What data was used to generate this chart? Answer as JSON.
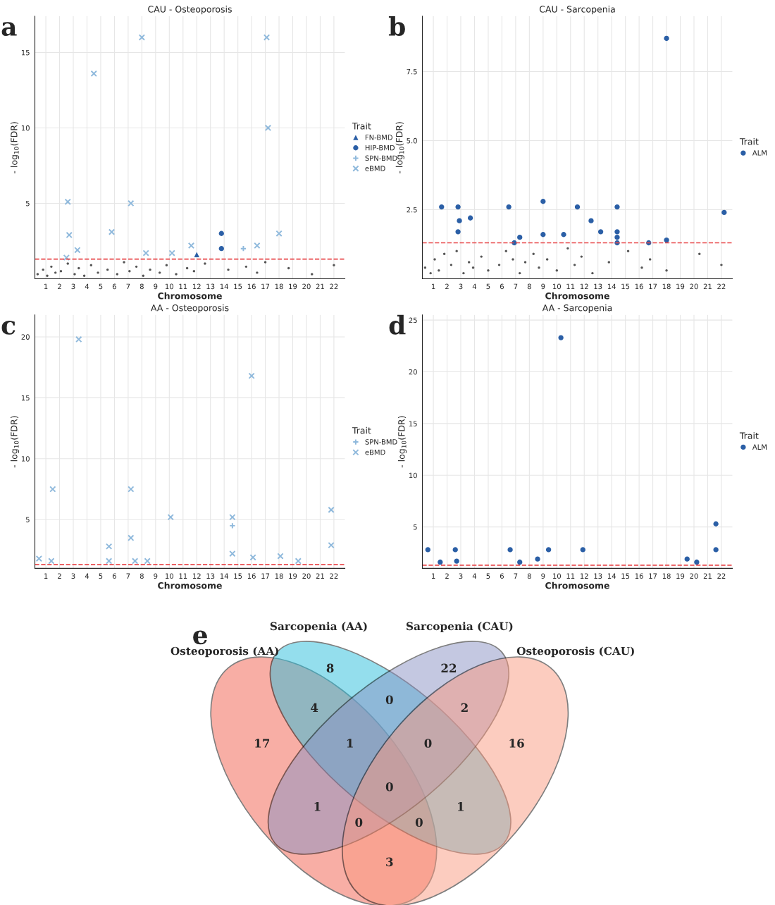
{
  "chart_data": [
    {
      "type": "scatter",
      "title": "CAU - Osteoporosis",
      "xlabel": "Chromosome",
      "ylabel": "- log$_{10}$(FDR)",
      "legend_title": "Trait",
      "annotations": [
        "a"
      ],
      "xlim": [
        0.2,
        22.8
      ],
      "xticks": [
        1,
        2,
        3,
        4,
        5,
        6,
        7,
        8,
        9,
        10,
        11,
        12,
        13,
        14,
        15,
        16,
        17,
        18,
        19,
        20,
        21,
        22
      ],
      "ylim": [
        0,
        17.4
      ],
      "yticks": [
        5,
        10,
        15
      ],
      "grid": true,
      "legend": "right",
      "ref_lines": [
        {
          "axis": "y",
          "value": 1.3,
          "color": "#e8474a",
          "line_style": "dashed"
        }
      ],
      "series": [
        {
          "color": "#555555",
          "marker": "circle",
          "x": [
            0.4,
            0.8,
            1.1,
            1.4,
            1.7,
            2.1,
            2.6,
            3.1,
            3.4,
            3.8,
            4.3,
            4.8,
            5.5,
            6.2,
            6.7,
            7.1,
            7.6,
            8.1,
            8.6,
            9.3,
            9.8,
            10.5,
            11.3,
            11.8,
            12.6,
            14.3,
            15.6,
            16.4,
            17.0,
            18.7,
            20.4,
            22.0
          ],
          "values": [
            0.3,
            0.6,
            0.2,
            0.8,
            0.4,
            0.5,
            1.0,
            0.3,
            0.7,
            0.2,
            0.9,
            0.4,
            0.6,
            0.3,
            1.1,
            0.5,
            0.8,
            0.2,
            0.6,
            0.4,
            0.9,
            0.3,
            0.7,
            0.5,
            1.0,
            0.6,
            0.8,
            0.4,
            1.1,
            0.7,
            0.3,
            0.9
          ]
        },
        {
          "name": "FN-BMD",
          "color": "#2b5fa6",
          "marker": "triangle",
          "x": [
            12.0
          ],
          "values": [
            1.6
          ]
        },
        {
          "name": "HIP-BMD",
          "color": "#2b5fa6",
          "marker": "circle",
          "x": [
            13.8,
            13.8
          ],
          "values": [
            3.0,
            2.0
          ]
        },
        {
          "name": "SPN-BMD",
          "color": "#8fb9dc",
          "marker": "cross",
          "x": [
            15.4
          ],
          "values": [
            2.0
          ]
        },
        {
          "name": "eBMD",
          "color": "#8fb9dc",
          "marker": "x",
          "x": [
            8.0,
            17.1,
            4.5,
            17.2,
            2.6,
            7.2,
            2.7,
            3.3,
            5.8,
            2.5,
            8.3,
            10.2,
            11.6,
            16.4,
            18.0
          ],
          "values": [
            16.0,
            16.0,
            13.6,
            10.0,
            5.1,
            5.0,
            2.9,
            1.9,
            3.1,
            1.4,
            1.7,
            1.7,
            2.2,
            2.2,
            3.0
          ]
        }
      ]
    },
    {
      "type": "scatter",
      "title": "CAU - Sarcopenia",
      "xlabel": "Chromosome",
      "ylabel": "- log$_{10}$(FDR)",
      "legend_title": "Trait",
      "annotations": [
        "b"
      ],
      "xlim": [
        0.2,
        22.8
      ],
      "xticks": [
        1,
        2,
        3,
        4,
        5,
        6,
        7,
        8,
        9,
        10,
        11,
        12,
        13,
        14,
        15,
        16,
        17,
        18,
        19,
        20,
        21,
        22
      ],
      "ylim": [
        0,
        9.5
      ],
      "yticks": [
        {
          "value": 2.5,
          "label": "2.5"
        },
        {
          "value": 5,
          "label": "5.0"
        },
        {
          "value": 7.5,
          "label": "7.5"
        }
      ],
      "grid": true,
      "legend": "right",
      "ref_lines": [
        {
          "axis": "y",
          "value": 1.3,
          "color": "#e8474a",
          "line_style": "dashed"
        }
      ],
      "series": [
        {
          "color": "#555555",
          "marker": "circle",
          "x": [
            0.4,
            0.8,
            1.1,
            1.4,
            1.8,
            2.3,
            2.7,
            3.2,
            3.6,
            3.9,
            4.5,
            5.0,
            5.8,
            6.3,
            6.8,
            7.3,
            7.7,
            8.3,
            8.7,
            9.3,
            10.0,
            10.8,
            11.3,
            11.8,
            12.6,
            13.8,
            15.2,
            16.2,
            16.8,
            18.0,
            20.4,
            22.0
          ],
          "values": [
            0.4,
            0.2,
            0.7,
            0.3,
            0.9,
            0.5,
            1.0,
            0.2,
            0.6,
            0.4,
            0.8,
            0.3,
            0.5,
            1.0,
            0.7,
            0.2,
            0.6,
            0.9,
            0.4,
            0.7,
            0.3,
            1.1,
            0.5,
            0.8,
            0.2,
            0.6,
            1.0,
            0.4,
            0.7,
            0.3,
            0.9,
            0.5
          ]
        },
        {
          "name": "ALM",
          "color": "#2b5fa6",
          "marker": "circle",
          "x": [
            18.0,
            1.6,
            2.8,
            2.9,
            2.8,
            3.7,
            6.5,
            6.9,
            7.3,
            9.0,
            9.0,
            10.5,
            11.5,
            12.5,
            13.2,
            14.4,
            14.4,
            14.4,
            14.4,
            16.7,
            18.0,
            22.2
          ],
          "values": [
            8.7,
            2.6,
            2.6,
            2.1,
            1.7,
            2.2,
            2.6,
            1.3,
            1.5,
            2.8,
            1.6,
            1.6,
            2.6,
            2.1,
            1.7,
            2.6,
            1.7,
            1.5,
            1.3,
            1.3,
            1.4,
            2.4
          ]
        }
      ]
    },
    {
      "type": "scatter",
      "title": "AA - Osteoporosis",
      "xlabel": "Chromosome",
      "ylabel": "- log$_{10}$(FDR)",
      "legend_title": "Trait",
      "annotations": [
        "c"
      ],
      "xlim": [
        0.2,
        22.8
      ],
      "xticks": [
        1,
        2,
        3,
        4,
        5,
        6,
        7,
        8,
        9,
        10,
        11,
        12,
        13,
        14,
        15,
        16,
        17,
        18,
        19,
        20,
        21,
        22
      ],
      "ylim": [
        1,
        21.8
      ],
      "yticks": [
        5,
        10,
        15,
        20
      ],
      "grid": true,
      "legend": "right",
      "ref_lines": [
        {
          "axis": "y",
          "value": 1.3,
          "color": "#e8474a",
          "line_style": "dashed"
        }
      ],
      "series": [
        {
          "name": "SPN-BMD",
          "color": "#8fb9dc",
          "marker": "cross",
          "x": [
            14.6
          ],
          "values": [
            4.5
          ]
        },
        {
          "name": "eBMD",
          "color": "#8fb9dc",
          "marker": "x",
          "x": [
            3.4,
            16.0,
            1.5,
            7.2,
            10.1,
            14.6,
            21.8,
            21.8,
            7.2,
            5.6,
            0.5,
            1.4,
            5.6,
            7.5,
            8.4,
            14.6,
            16.1,
            18.1,
            19.4
          ],
          "values": [
            19.8,
            16.8,
            7.5,
            7.5,
            5.2,
            5.2,
            5.8,
            2.9,
            3.5,
            2.8,
            1.8,
            1.6,
            1.6,
            1.6,
            1.6,
            2.2,
            1.9,
            2.0,
            1.6
          ]
        }
      ]
    },
    {
      "type": "scatter",
      "title": "AA - Sarcopenia",
      "xlabel": "Chromosome",
      "ylabel": "- log$_{10}$(FDR)",
      "legend_title": "Trait",
      "annotations": [
        "d"
      ],
      "xlim": [
        0.2,
        22.8
      ],
      "xticks": [
        1,
        2,
        3,
        4,
        5,
        6,
        7,
        8,
        9,
        10,
        11,
        12,
        13,
        14,
        15,
        16,
        17,
        18,
        19,
        20,
        21,
        22
      ],
      "ylim": [
        1,
        25.5
      ],
      "yticks": [
        5,
        10,
        15,
        20,
        25
      ],
      "grid": true,
      "legend": "right",
      "ref_lines": [
        {
          "axis": "y",
          "value": 1.3,
          "color": "#e8474a",
          "line_style": "dashed"
        }
      ],
      "series": [
        {
          "name": "ALM",
          "color": "#2b5fa6",
          "marker": "circle",
          "x": [
            10.3,
            21.6,
            0.6,
            2.6,
            2.7,
            1.5,
            6.6,
            7.3,
            8.6,
            9.4,
            11.9,
            21.6,
            19.5,
            20.2
          ],
          "values": [
            23.3,
            5.3,
            2.8,
            2.8,
            1.7,
            1.6,
            2.8,
            1.6,
            1.9,
            2.8,
            2.8,
            2.8,
            1.9,
            1.6
          ]
        }
      ]
    },
    {
      "type": "other",
      "categories": [
        "Osteoporosis (AA)",
        "Sarcopenia (AA)",
        "Sarcopenia (CAU)",
        "Osteoporosis (CAU)"
      ],
      "colors": [
        "#f2604e",
        "#2cbfdc",
        "#8a93c4",
        "#fb9a80"
      ],
      "annotations": [
        "e",
        "17",
        "8",
        "22",
        "16",
        "4",
        "0",
        "2",
        "3",
        "1",
        "1",
        "1",
        "0",
        "0",
        "0",
        "0"
      ]
    }
  ]
}
